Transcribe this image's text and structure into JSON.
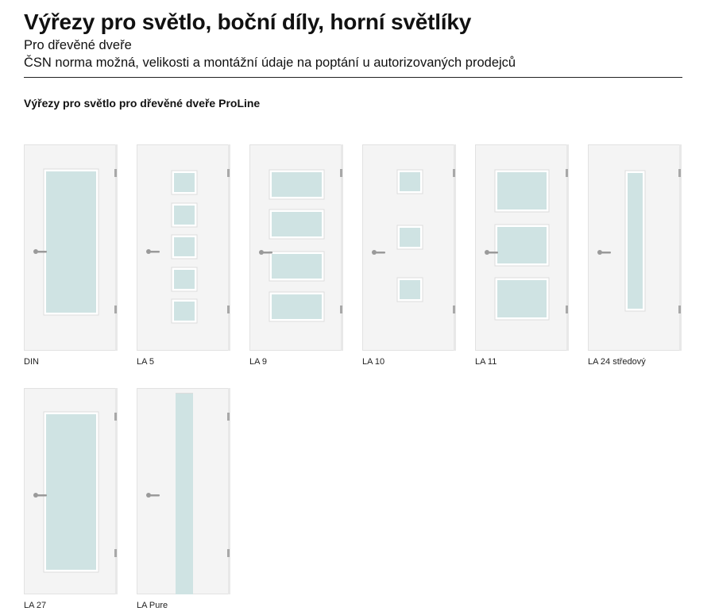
{
  "header": {
    "title": "Výřezy pro světlo, boční díly, horní světlíky",
    "subtitle_line1": "Pro dřevěné dveře",
    "subtitle_line2": "ČSN norma možná, velikosti a montážní údaje na poptání u autorizovaných prodejců"
  },
  "section": {
    "title": "Výřezy pro světlo pro dřevěné dveře ProLine"
  },
  "colors": {
    "door": "#f4f4f4",
    "glass": "#cfe3e3",
    "frame": "#e2e2e2",
    "handle": "#9a9a9a",
    "text": "#111111"
  },
  "doors": [
    {
      "label": "DIN",
      "icon": "door-din-icon"
    },
    {
      "label": "LA 5",
      "icon": "door-la5-icon"
    },
    {
      "label": "LA 9",
      "icon": "door-la9-icon"
    },
    {
      "label": "LA 10",
      "icon": "door-la10-icon"
    },
    {
      "label": "LA 11",
      "icon": "door-la11-icon"
    },
    {
      "label": "LA 24 středový",
      "icon": "door-la24-icon"
    },
    {
      "label": "LA 27",
      "icon": "door-la27-icon"
    },
    {
      "label": "LA Pure",
      "icon": "door-lapure-icon"
    }
  ]
}
